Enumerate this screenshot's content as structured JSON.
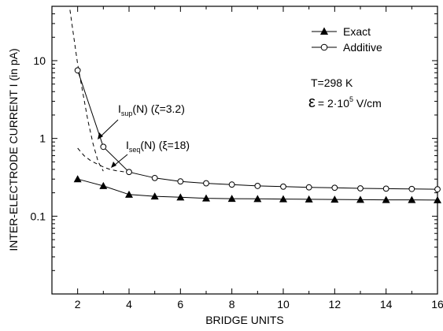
{
  "chart_data": {
    "type": "line",
    "xlabel": "BRIDGE UNITS",
    "ylabel": "INTER-ELECTRODE CURRENT I (in pA)",
    "xlim": [
      1,
      16
    ],
    "ylim": [
      0.01,
      50
    ],
    "yscale": "log",
    "x_ticks": [
      2,
      4,
      6,
      8,
      10,
      12,
      14,
      16
    ],
    "y_ticks": [
      {
        "value": 0.1,
        "label": "0.1"
      },
      {
        "value": 1,
        "label": "1"
      },
      {
        "value": 10,
        "label": "10"
      }
    ],
    "grid": false,
    "legend_position": "top-right",
    "series": [
      {
        "name": "Exact",
        "marker": "filled-triangle",
        "color": "#000000",
        "x": [
          2,
          3,
          4,
          5,
          6,
          7,
          8,
          9,
          10,
          11,
          12,
          13,
          14,
          15,
          16
        ],
        "y": [
          0.3,
          0.245,
          0.19,
          0.18,
          0.175,
          0.17,
          0.168,
          0.167,
          0.166,
          0.165,
          0.164,
          0.163,
          0.162,
          0.162,
          0.161
        ]
      },
      {
        "name": "Additive",
        "marker": "open-circle",
        "color": "#000000",
        "x": [
          2,
          3,
          4,
          5,
          6,
          7,
          8,
          9,
          10,
          11,
          12,
          13,
          14,
          15,
          16
        ],
        "y": [
          7.5,
          0.78,
          0.37,
          0.31,
          0.28,
          0.265,
          0.255,
          0.245,
          0.24,
          0.235,
          0.232,
          0.228,
          0.226,
          0.224,
          0.222
        ]
      }
    ],
    "fit_curves": [
      {
        "style": "dashed",
        "x": [
          1.7,
          1.85,
          2,
          2.2,
          2.4,
          2.6,
          2.8,
          3.0
        ],
        "y": [
          45,
          20,
          9.0,
          3.9,
          1.7,
          0.85,
          0.5,
          0.38
        ]
      },
      {
        "style": "dashed",
        "x": [
          2,
          2.25,
          2.5,
          2.75,
          3.0,
          3.25,
          3.5,
          3.75,
          4.0
        ],
        "y": [
          0.75,
          0.6,
          0.52,
          0.47,
          0.43,
          0.4,
          0.385,
          0.375,
          0.37
        ]
      }
    ],
    "annotations": {
      "sup": {
        "main": "I",
        "sub": "sup",
        "rest": "(N)  (ζ=3.2)",
        "arrow_x": 2.85,
        "arrow_y": 1.1
      },
      "seq": {
        "main": "I",
        "sub": "seq",
        "rest": "(N)  (ξ=18)",
        "arrow_x": 3.35,
        "arrow_y": 0.45
      },
      "temperature": "T=298 K",
      "field_symbol": "ε",
      "field_prefix": "= 2·10",
      "field_exp": "5",
      "field_unit": " V/cm"
    }
  }
}
